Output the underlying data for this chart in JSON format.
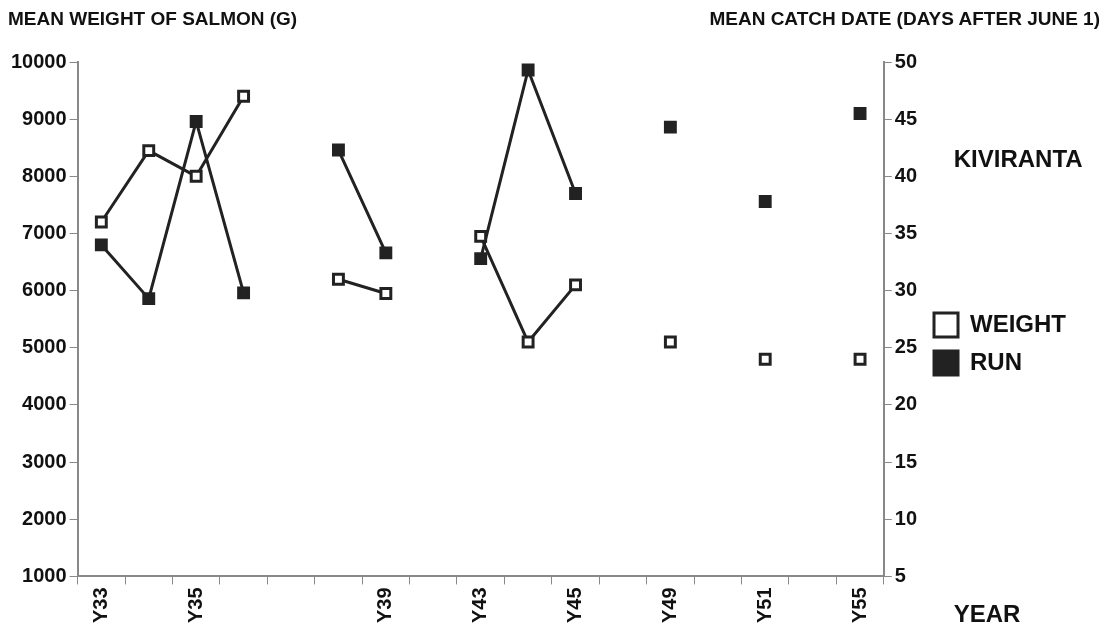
{
  "chart_data": {
    "type": "line",
    "ylabel": "MEAN WEIGHT OF SALMON (G)",
    "y2label": "MEAN CATCH DATE (DAYS AFTER JUNE 1)",
    "xlabel": "YEAR",
    "annotations": [
      "KIVIRANTA"
    ],
    "categories": [
      "Y33",
      null,
      "Y35",
      null,
      null,
      null,
      "Y39",
      null,
      "Y43",
      null,
      "Y45",
      null,
      "Y49",
      null,
      "Y51",
      null,
      "Y55"
    ],
    "series": [
      {
        "name": "WEIGHT",
        "color": "#222222",
        "values": [
          7200,
          8450,
          8000,
          9400,
          null,
          6200,
          5950,
          null,
          6950,
          5100,
          6100,
          null,
          5100,
          null,
          4800,
          null,
          4800
        ]
      },
      {
        "name": "RUN",
        "color": "#222222",
        "axis": "y2",
        "values": [
          34,
          29.3,
          44.8,
          29.8,
          null,
          42.3,
          33.3,
          null,
          32.8,
          49.3,
          38.5,
          null,
          44.3,
          null,
          37.8,
          null,
          45.5
        ]
      }
    ],
    "ylim": [
      1000,
      10000
    ],
    "yticks": [
      1000,
      2000,
      3000,
      4000,
      5000,
      6000,
      7000,
      8000,
      9000,
      10000
    ],
    "y2lim": [
      5,
      50
    ],
    "y2ticks": [
      5,
      10,
      15,
      20,
      25,
      30,
      35,
      40,
      45,
      50
    ],
    "grid": false,
    "legend": "right",
    "marker": "square",
    "line_style": "solid"
  }
}
